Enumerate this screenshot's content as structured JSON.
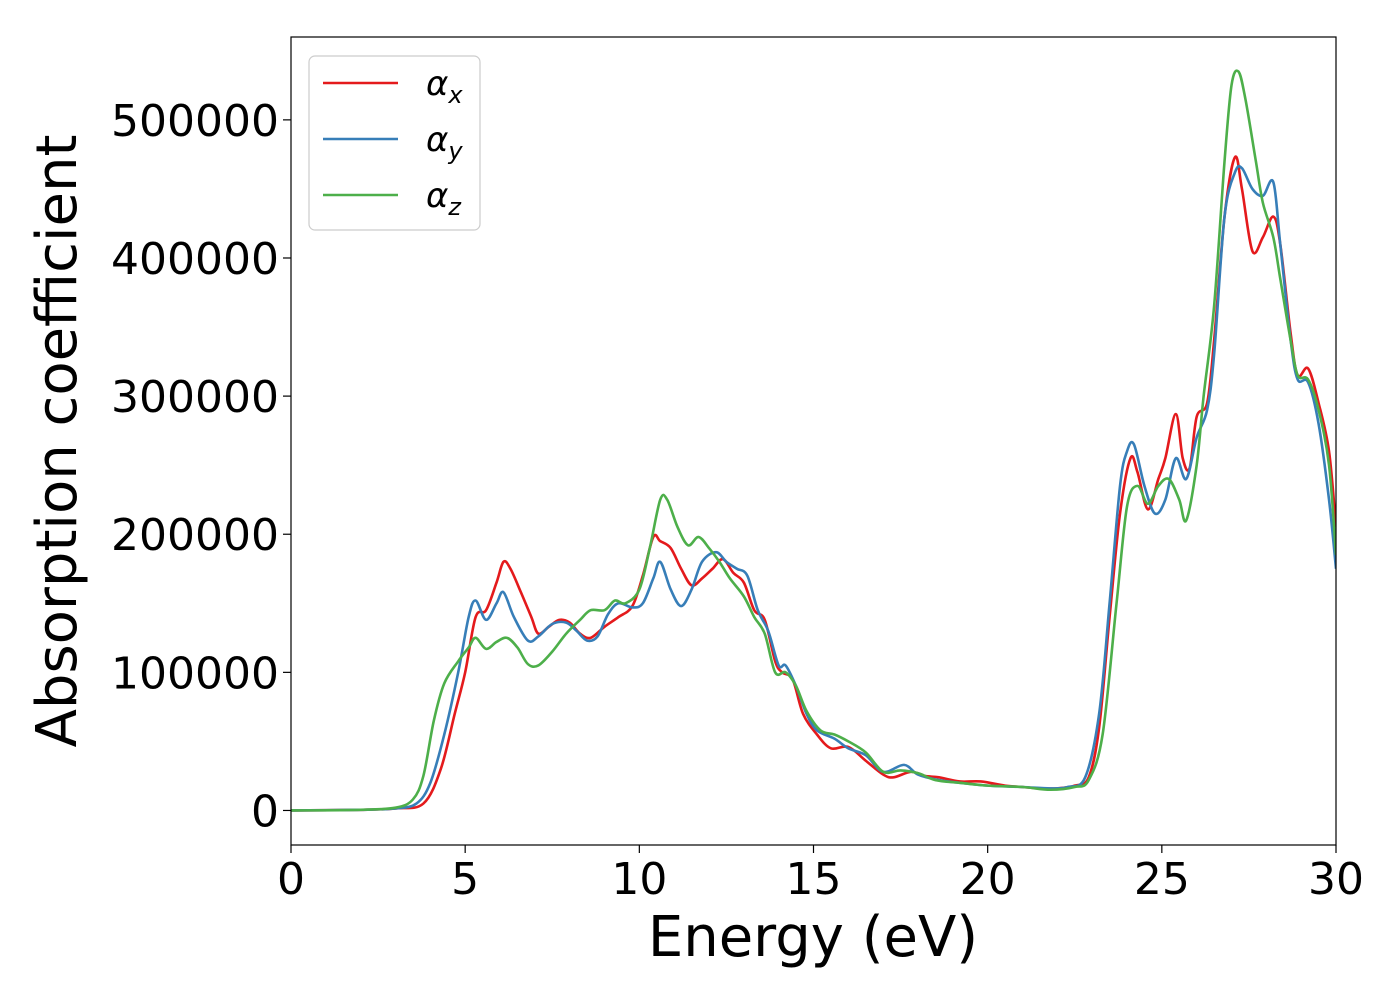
{
  "chart_data": {
    "type": "line",
    "xlabel": "Energy (eV)",
    "ylabel": "Absorption coefficient",
    "xlim": [
      0,
      30
    ],
    "ylim": [
      -25000,
      560000
    ],
    "xticks": [
      0,
      5,
      10,
      15,
      20,
      25,
      30
    ],
    "yticks": [
      0,
      100000,
      200000,
      300000,
      400000,
      500000
    ],
    "grid": false,
    "legend": "upper-left",
    "series": [
      {
        "name": "αx",
        "base": "α",
        "sub": "x",
        "color": "#e41a1c",
        "points": [
          [
            0,
            0
          ],
          [
            2,
            500
          ],
          [
            3,
            1500
          ],
          [
            3.8,
            5000
          ],
          [
            4.3,
            30000
          ],
          [
            4.7,
            70000
          ],
          [
            5.0,
            100000
          ],
          [
            5.3,
            140000
          ],
          [
            5.6,
            145000
          ],
          [
            5.9,
            165000
          ],
          [
            6.1,
            180000
          ],
          [
            6.3,
            175000
          ],
          [
            6.6,
            158000
          ],
          [
            6.9,
            140000
          ],
          [
            7.1,
            128000
          ],
          [
            7.4,
            133000
          ],
          [
            7.7,
            138000
          ],
          [
            8.0,
            136000
          ],
          [
            8.3,
            128000
          ],
          [
            8.6,
            125000
          ],
          [
            9.0,
            133000
          ],
          [
            9.4,
            140000
          ],
          [
            9.8,
            148000
          ],
          [
            10.1,
            170000
          ],
          [
            10.4,
            198000
          ],
          [
            10.6,
            195000
          ],
          [
            10.9,
            190000
          ],
          [
            11.2,
            175000
          ],
          [
            11.5,
            163000
          ],
          [
            11.8,
            168000
          ],
          [
            12.1,
            175000
          ],
          [
            12.4,
            182000
          ],
          [
            12.7,
            172000
          ],
          [
            13.0,
            165000
          ],
          [
            13.3,
            145000
          ],
          [
            13.6,
            138000
          ],
          [
            13.9,
            108000
          ],
          [
            14.1,
            100000
          ],
          [
            14.4,
            95000
          ],
          [
            14.7,
            70000
          ],
          [
            15.1,
            55000
          ],
          [
            15.5,
            45000
          ],
          [
            16.0,
            46000
          ],
          [
            16.5,
            36000
          ],
          [
            17.0,
            26000
          ],
          [
            17.3,
            24000
          ],
          [
            17.8,
            28000
          ],
          [
            18.2,
            25000
          ],
          [
            18.6,
            24000
          ],
          [
            19.2,
            21000
          ],
          [
            19.8,
            21000
          ],
          [
            20.5,
            18000
          ],
          [
            21.0,
            17000
          ],
          [
            21.5,
            16000
          ],
          [
            22.0,
            16000
          ],
          [
            22.5,
            18000
          ],
          [
            22.9,
            24000
          ],
          [
            23.2,
            60000
          ],
          [
            23.5,
            140000
          ],
          [
            23.8,
            215000
          ],
          [
            24.1,
            255000
          ],
          [
            24.3,
            245000
          ],
          [
            24.6,
            218000
          ],
          [
            24.9,
            240000
          ],
          [
            25.1,
            255000
          ],
          [
            25.4,
            287000
          ],
          [
            25.6,
            255000
          ],
          [
            25.8,
            248000
          ],
          [
            26.0,
            285000
          ],
          [
            26.3,
            295000
          ],
          [
            26.5,
            340000
          ],
          [
            26.8,
            430000
          ],
          [
            27.1,
            473000
          ],
          [
            27.3,
            450000
          ],
          [
            27.6,
            405000
          ],
          [
            27.9,
            415000
          ],
          [
            28.2,
            430000
          ],
          [
            28.4,
            410000
          ],
          [
            28.7,
            345000
          ],
          [
            28.9,
            315000
          ],
          [
            29.2,
            320000
          ],
          [
            29.5,
            295000
          ],
          [
            29.8,
            260000
          ],
          [
            30.0,
            205000
          ]
        ]
      },
      {
        "name": "αy",
        "base": "α",
        "sub": "y",
        "color": "#377eb8",
        "points": [
          [
            0,
            0
          ],
          [
            2,
            500
          ],
          [
            3,
            1500
          ],
          [
            3.6,
            5000
          ],
          [
            4.0,
            20000
          ],
          [
            4.4,
            55000
          ],
          [
            4.8,
            100000
          ],
          [
            5.1,
            140000
          ],
          [
            5.3,
            152000
          ],
          [
            5.6,
            138000
          ],
          [
            5.9,
            150000
          ],
          [
            6.1,
            158000
          ],
          [
            6.4,
            140000
          ],
          [
            6.8,
            123000
          ],
          [
            7.1,
            126000
          ],
          [
            7.5,
            135000
          ],
          [
            7.9,
            136000
          ],
          [
            8.2,
            130000
          ],
          [
            8.5,
            123000
          ],
          [
            8.8,
            126000
          ],
          [
            9.1,
            142000
          ],
          [
            9.4,
            150000
          ],
          [
            9.8,
            147000
          ],
          [
            10.1,
            150000
          ],
          [
            10.4,
            168000
          ],
          [
            10.6,
            180000
          ],
          [
            10.9,
            160000
          ],
          [
            11.2,
            148000
          ],
          [
            11.5,
            160000
          ],
          [
            11.8,
            180000
          ],
          [
            12.2,
            187000
          ],
          [
            12.5,
            180000
          ],
          [
            12.8,
            175000
          ],
          [
            13.1,
            170000
          ],
          [
            13.4,
            145000
          ],
          [
            13.7,
            130000
          ],
          [
            14.0,
            105000
          ],
          [
            14.2,
            105000
          ],
          [
            14.5,
            90000
          ],
          [
            14.8,
            70000
          ],
          [
            15.1,
            58000
          ],
          [
            15.6,
            52000
          ],
          [
            16.0,
            45000
          ],
          [
            16.5,
            40000
          ],
          [
            17.0,
            28000
          ],
          [
            17.6,
            33000
          ],
          [
            18.0,
            26000
          ],
          [
            18.6,
            22000
          ],
          [
            19.2,
            20000
          ],
          [
            20.0,
            18000
          ],
          [
            21.0,
            17000
          ],
          [
            21.8,
            16000
          ],
          [
            22.3,
            17000
          ],
          [
            22.8,
            24000
          ],
          [
            23.2,
            70000
          ],
          [
            23.5,
            150000
          ],
          [
            23.8,
            235000
          ],
          [
            24.0,
            260000
          ],
          [
            24.2,
            265000
          ],
          [
            24.5,
            235000
          ],
          [
            24.8,
            215000
          ],
          [
            25.1,
            225000
          ],
          [
            25.4,
            255000
          ],
          [
            25.7,
            240000
          ],
          [
            26.0,
            270000
          ],
          [
            26.3,
            290000
          ],
          [
            26.5,
            330000
          ],
          [
            26.8,
            430000
          ],
          [
            27.1,
            462000
          ],
          [
            27.3,
            465000
          ],
          [
            27.6,
            450000
          ],
          [
            27.9,
            445000
          ],
          [
            28.2,
            455000
          ],
          [
            28.4,
            410000
          ],
          [
            28.7,
            340000
          ],
          [
            28.9,
            312000
          ],
          [
            29.2,
            310000
          ],
          [
            29.5,
            280000
          ],
          [
            29.8,
            225000
          ],
          [
            30.0,
            175000
          ]
        ]
      },
      {
        "name": "αz",
        "base": "α",
        "sub": "z",
        "color": "#4daf4a",
        "points": [
          [
            0,
            0
          ],
          [
            2,
            500
          ],
          [
            3,
            2000
          ],
          [
            3.5,
            8000
          ],
          [
            3.8,
            25000
          ],
          [
            4.1,
            65000
          ],
          [
            4.4,
            92000
          ],
          [
            4.8,
            108000
          ],
          [
            5.1,
            118000
          ],
          [
            5.3,
            125000
          ],
          [
            5.6,
            117000
          ],
          [
            5.9,
            122000
          ],
          [
            6.2,
            125000
          ],
          [
            6.5,
            118000
          ],
          [
            6.8,
            106000
          ],
          [
            7.1,
            105000
          ],
          [
            7.5,
            115000
          ],
          [
            7.9,
            128000
          ],
          [
            8.3,
            138000
          ],
          [
            8.6,
            145000
          ],
          [
            9.0,
            145000
          ],
          [
            9.3,
            152000
          ],
          [
            9.6,
            150000
          ],
          [
            10.0,
            160000
          ],
          [
            10.3,
            190000
          ],
          [
            10.6,
            225000
          ],
          [
            10.8,
            225000
          ],
          [
            11.1,
            205000
          ],
          [
            11.4,
            192000
          ],
          [
            11.7,
            198000
          ],
          [
            12.0,
            190000
          ],
          [
            12.3,
            180000
          ],
          [
            12.6,
            168000
          ],
          [
            13.0,
            155000
          ],
          [
            13.3,
            140000
          ],
          [
            13.6,
            128000
          ],
          [
            13.9,
            100000
          ],
          [
            14.2,
            100000
          ],
          [
            14.5,
            90000
          ],
          [
            14.8,
            72000
          ],
          [
            15.2,
            58000
          ],
          [
            15.6,
            55000
          ],
          [
            16.0,
            50000
          ],
          [
            16.5,
            42000
          ],
          [
            17.0,
            28000
          ],
          [
            17.5,
            29000
          ],
          [
            18.0,
            27000
          ],
          [
            18.5,
            22000
          ],
          [
            19.2,
            20000
          ],
          [
            20.0,
            18000
          ],
          [
            21.0,
            17000
          ],
          [
            21.8,
            15000
          ],
          [
            22.5,
            17000
          ],
          [
            22.9,
            22000
          ],
          [
            23.3,
            55000
          ],
          [
            23.7,
            150000
          ],
          [
            24.0,
            220000
          ],
          [
            24.3,
            235000
          ],
          [
            24.6,
            222000
          ],
          [
            24.9,
            235000
          ],
          [
            25.2,
            240000
          ],
          [
            25.5,
            225000
          ],
          [
            25.7,
            210000
          ],
          [
            26.0,
            250000
          ],
          [
            26.2,
            300000
          ],
          [
            26.5,
            365000
          ],
          [
            26.8,
            470000
          ],
          [
            27.0,
            525000
          ],
          [
            27.2,
            535000
          ],
          [
            27.4,
            515000
          ],
          [
            27.7,
            470000
          ],
          [
            27.9,
            440000
          ],
          [
            28.2,
            415000
          ],
          [
            28.4,
            385000
          ],
          [
            28.7,
            340000
          ],
          [
            28.9,
            315000
          ],
          [
            29.2,
            312000
          ],
          [
            29.5,
            290000
          ],
          [
            29.8,
            250000
          ],
          [
            30.0,
            185000
          ]
        ]
      }
    ]
  }
}
